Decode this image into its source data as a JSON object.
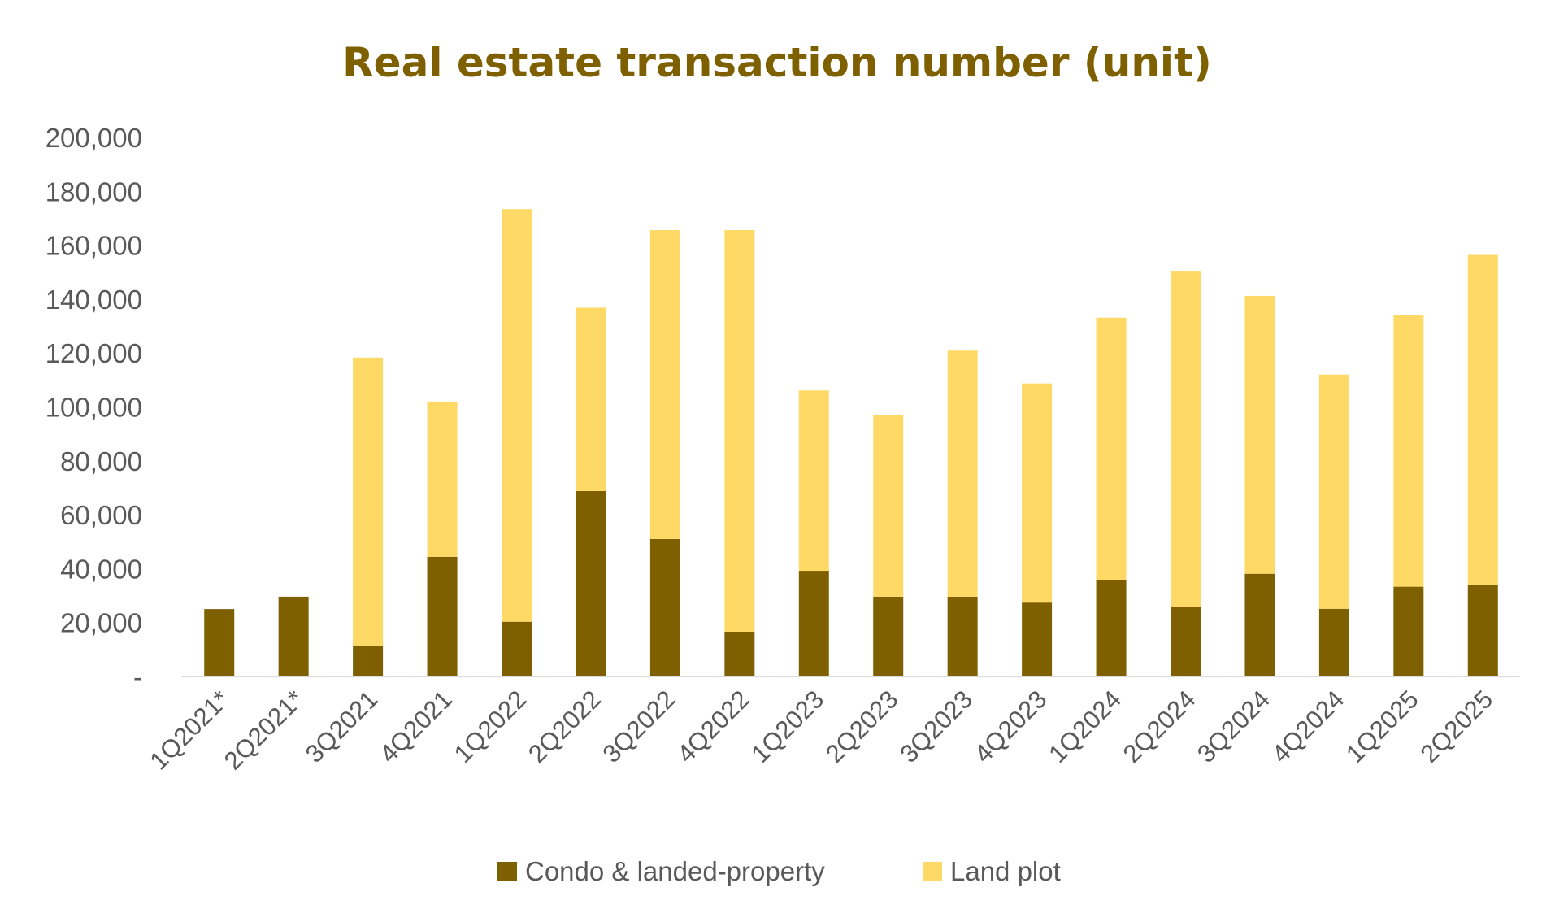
{
  "chart_data": {
    "type": "bar",
    "stacked": true,
    "title": "Real estate transaction number (unit)",
    "xlabel": "",
    "ylabel": "",
    "ylim": [
      0,
      200000
    ],
    "yticks": [
      0,
      20000,
      40000,
      60000,
      80000,
      100000,
      120000,
      140000,
      160000,
      180000,
      200000
    ],
    "ytick_labels": [
      "-",
      "20,000",
      "40,000",
      "60,000",
      "80,000",
      "100,000",
      "120,000",
      "140,000",
      "160,000",
      "180,000",
      "200,000"
    ],
    "grid": false,
    "legend_position": "bottom",
    "categories": [
      "1Q2021*",
      "2Q2021*",
      "3Q2021",
      "4Q2021",
      "1Q2022",
      "2Q2022",
      "3Q2022",
      "4Q2022",
      "1Q2023",
      "2Q2023",
      "3Q2023",
      "4Q2023",
      "1Q2024",
      "2Q2024",
      "3Q2024",
      "4Q2024",
      "1Q2025",
      "2Q2025"
    ],
    "series": [
      {
        "name": "Condo & landed-property",
        "color": "#7f6000",
        "values": [
          25000,
          29600,
          11500,
          44400,
          20300,
          68800,
          51000,
          16600,
          39200,
          29600,
          29600,
          27400,
          35900,
          25900,
          38100,
          25100,
          33300,
          34000
        ]
      },
      {
        "name": "Land plot",
        "color": "#ffd966",
        "values": [
          0,
          0,
          106800,
          57600,
          153100,
          68000,
          114600,
          149000,
          66900,
          67300,
          91300,
          81300,
          97200,
          124600,
          103100,
          86900,
          100900,
          122400
        ]
      }
    ]
  }
}
